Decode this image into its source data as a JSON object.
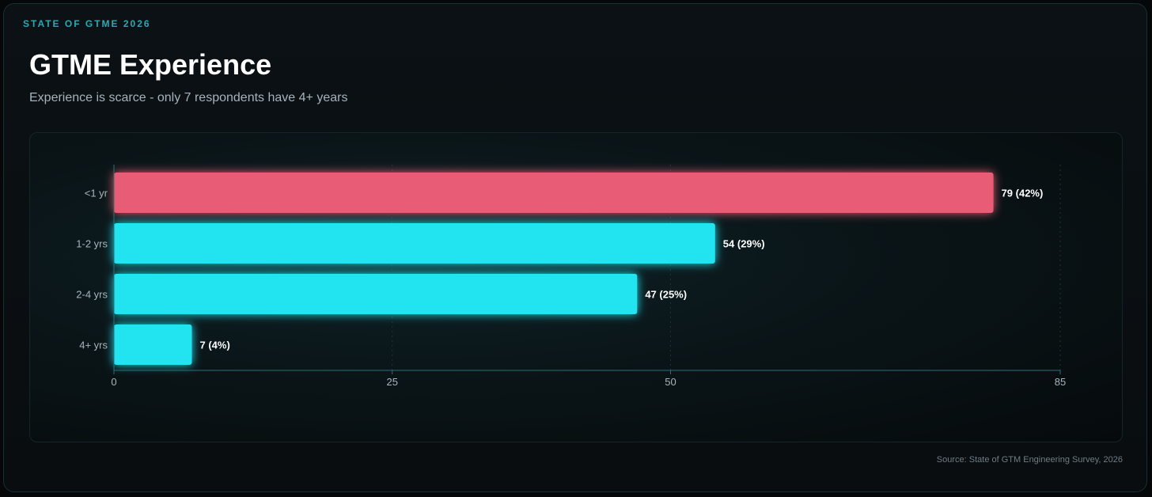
{
  "header": {
    "eyebrow": "STATE OF GTME 2026",
    "title": "GTME Experience",
    "subtitle": "Experience is scarce - only 7 respondents have 4+ years"
  },
  "footer": {
    "source": "Source: State of GTM Engineering Survey, 2026"
  },
  "colors": {
    "highlight": "#e85d75",
    "bar": "#22e3f0",
    "accent": "#2aa9b4"
  },
  "chart_data": {
    "type": "bar",
    "orientation": "horizontal",
    "title": "",
    "xlabel": "",
    "ylabel": "",
    "categories": [
      "<1 yr",
      "1-2 yrs",
      "2-4 yrs",
      "4+ yrs"
    ],
    "values": [
      79,
      54,
      47,
      7
    ],
    "data_labels": [
      "79 (42%)",
      "54 (29%)",
      "47 (25%)",
      "7 (4%)"
    ],
    "highlighted_category": "<1 yr",
    "xlim": [
      0,
      85
    ],
    "x_ticks": [
      0,
      25,
      50,
      85
    ],
    "grid": true,
    "legend": "none"
  }
}
